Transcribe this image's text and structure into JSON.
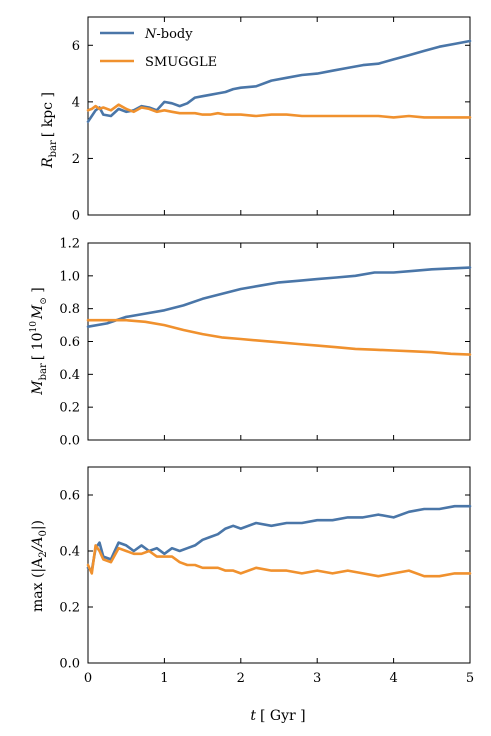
{
  "colors": {
    "nbody": "#4a76a8",
    "smuggle": "#f0912e"
  },
  "legend": {
    "nbody_italic": "N",
    "nbody_rest": "-body",
    "smuggle": "SMUGGLE",
    "placement": "top-left"
  },
  "xaxis": {
    "label_main": "t",
    "label_unit": "[ Gyr ]",
    "ticks": [
      "0",
      "1",
      "2",
      "3",
      "4",
      "5"
    ]
  },
  "chart_data": [
    {
      "type": "line",
      "ylabel": {
        "main": "R",
        "sub": "bar",
        "unit": "[ kpc ]"
      },
      "xlim": [
        0,
        5
      ],
      "ylim": [
        0,
        7
      ],
      "yticks": [
        "0",
        "2",
        "4",
        "6"
      ],
      "ytick_values": [
        0,
        2,
        4,
        6
      ],
      "grid": false,
      "x": [
        0,
        0.05,
        0.1,
        0.15,
        0.2,
        0.3,
        0.4,
        0.5,
        0.6,
        0.7,
        0.8,
        0.9,
        1.0,
        1.1,
        1.2,
        1.3,
        1.4,
        1.5,
        1.6,
        1.7,
        1.8,
        1.9,
        2.0,
        2.2,
        2.4,
        2.6,
        2.8,
        3.0,
        3.2,
        3.4,
        3.6,
        3.8,
        4.0,
        4.2,
        4.4,
        4.6,
        4.8,
        5.0
      ],
      "series": [
        {
          "key": "nbody",
          "values": [
            3.3,
            3.5,
            3.7,
            3.8,
            3.55,
            3.5,
            3.75,
            3.65,
            3.7,
            3.85,
            3.8,
            3.7,
            4.0,
            3.95,
            3.85,
            3.95,
            4.15,
            4.2,
            4.25,
            4.3,
            4.35,
            4.45,
            4.5,
            4.55,
            4.75,
            4.85,
            4.95,
            5.0,
            5.1,
            5.2,
            5.3,
            5.35,
            5.5,
            5.65,
            5.8,
            5.95,
            6.05,
            6.15
          ]
        },
        {
          "key": "smuggle",
          "values": [
            3.7,
            3.75,
            3.85,
            3.75,
            3.8,
            3.7,
            3.9,
            3.75,
            3.65,
            3.8,
            3.75,
            3.65,
            3.7,
            3.65,
            3.6,
            3.6,
            3.6,
            3.55,
            3.55,
            3.6,
            3.55,
            3.55,
            3.55,
            3.5,
            3.55,
            3.55,
            3.5,
            3.5,
            3.5,
            3.5,
            3.5,
            3.5,
            3.45,
            3.5,
            3.45,
            3.45,
            3.45,
            3.45
          ]
        }
      ]
    },
    {
      "type": "line",
      "ylabel": {
        "main": "M",
        "sub": "bar",
        "unit": "[ 10",
        "unit_sup": "10",
        "unit_tail": "M",
        "unit_tail_sub": "⊙",
        "unit_close": " ]"
      },
      "xlim": [
        0,
        5
      ],
      "ylim": [
        0,
        1.2
      ],
      "yticks": [
        "0.0",
        "0.2",
        "0.4",
        "0.6",
        "0.8",
        "1.0",
        "1.2"
      ],
      "ytick_values": [
        0,
        0.2,
        0.4,
        0.6,
        0.8,
        1.0,
        1.2
      ],
      "grid": false,
      "x": [
        0,
        0.25,
        0.5,
        0.75,
        1.0,
        1.25,
        1.5,
        1.75,
        2.0,
        2.25,
        2.5,
        2.75,
        3.0,
        3.25,
        3.5,
        3.75,
        4.0,
        4.25,
        4.5,
        4.75,
        5.0
      ],
      "series": [
        {
          "key": "nbody",
          "values": [
            0.69,
            0.71,
            0.75,
            0.77,
            0.79,
            0.82,
            0.86,
            0.89,
            0.92,
            0.94,
            0.96,
            0.97,
            0.98,
            0.99,
            1.0,
            1.02,
            1.02,
            1.03,
            1.04,
            1.045,
            1.05
          ]
        },
        {
          "key": "smuggle",
          "values": [
            0.73,
            0.73,
            0.73,
            0.72,
            0.7,
            0.67,
            0.645,
            0.625,
            0.615,
            0.605,
            0.595,
            0.585,
            0.575,
            0.565,
            0.555,
            0.55,
            0.545,
            0.54,
            0.535,
            0.525,
            0.52
          ]
        }
      ]
    },
    {
      "type": "line",
      "ylabel": {
        "main": "max (|A",
        "sub1": "2",
        "mid": "/A",
        "sub2": "0",
        "close": "|)"
      },
      "xlim": [
        0,
        5
      ],
      "ylim": [
        0,
        0.7
      ],
      "yticks": [
        "0.0",
        "0.2",
        "0.4",
        "0.6"
      ],
      "ytick_values": [
        0,
        0.2,
        0.4,
        0.6
      ],
      "grid": false,
      "x": [
        0,
        0.05,
        0.1,
        0.15,
        0.2,
        0.3,
        0.4,
        0.5,
        0.6,
        0.7,
        0.8,
        0.9,
        1.0,
        1.1,
        1.2,
        1.3,
        1.4,
        1.5,
        1.6,
        1.7,
        1.8,
        1.9,
        2.0,
        2.2,
        2.4,
        2.6,
        2.8,
        3.0,
        3.2,
        3.4,
        3.6,
        3.8,
        4.0,
        4.2,
        4.4,
        4.6,
        4.8,
        5.0
      ],
      "series": [
        {
          "key": "nbody",
          "values": [
            0.34,
            0.33,
            0.41,
            0.43,
            0.38,
            0.37,
            0.43,
            0.42,
            0.4,
            0.42,
            0.4,
            0.41,
            0.39,
            0.41,
            0.4,
            0.41,
            0.42,
            0.44,
            0.45,
            0.46,
            0.48,
            0.49,
            0.48,
            0.5,
            0.49,
            0.5,
            0.5,
            0.51,
            0.51,
            0.52,
            0.52,
            0.53,
            0.52,
            0.54,
            0.55,
            0.55,
            0.56,
            0.56
          ]
        },
        {
          "key": "smuggle",
          "values": [
            0.35,
            0.32,
            0.42,
            0.4,
            0.37,
            0.36,
            0.41,
            0.4,
            0.39,
            0.39,
            0.4,
            0.38,
            0.38,
            0.38,
            0.36,
            0.35,
            0.35,
            0.34,
            0.34,
            0.34,
            0.33,
            0.33,
            0.32,
            0.34,
            0.33,
            0.33,
            0.32,
            0.33,
            0.32,
            0.33,
            0.32,
            0.31,
            0.32,
            0.33,
            0.31,
            0.31,
            0.32,
            0.32
          ]
        }
      ]
    }
  ]
}
